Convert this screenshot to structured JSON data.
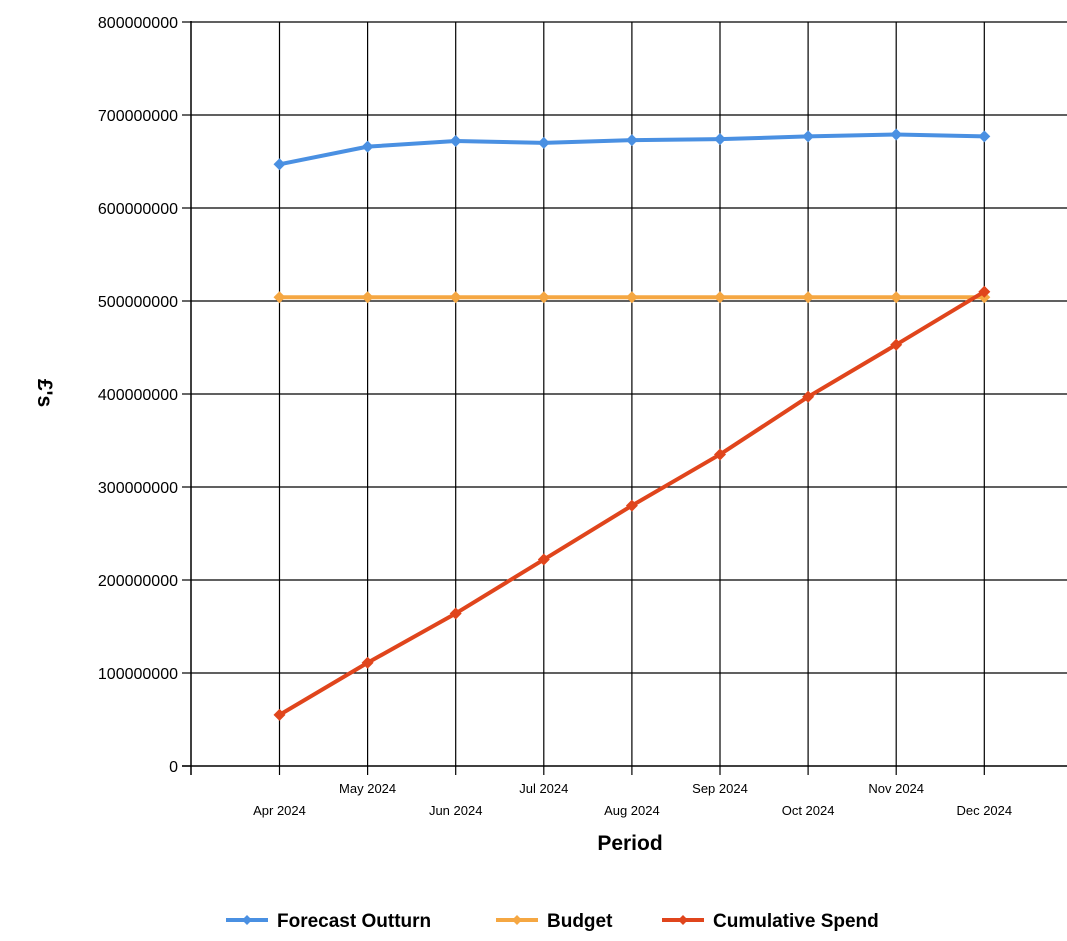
{
  "chart_data": {
    "type": "line",
    "title": "",
    "xlabel": "Period",
    "ylabel": "£'s",
    "ylim": [
      0,
      800000000
    ],
    "yticks": [
      0,
      100000000,
      200000000,
      300000000,
      400000000,
      500000000,
      600000000,
      700000000,
      800000000
    ],
    "ytick_labels": [
      "0",
      "100000000",
      "200000000",
      "300000000",
      "400000000",
      "500000000",
      "600000000",
      "700000000",
      "800000000"
    ],
    "categories": [
      "Apr 2024",
      "May 2024",
      "Jun 2024",
      "Jul 2024",
      "Aug 2024",
      "Sep 2024",
      "Oct 2024",
      "Nov 2024",
      "Dec 2024"
    ],
    "grid": true,
    "legend_position": "bottom",
    "series": [
      {
        "name": "Forecast Outturn",
        "color": "#4a90e2",
        "values": [
          647000000,
          666000000,
          672000000,
          670000000,
          673000000,
          674000000,
          677000000,
          679000000,
          677000000
        ]
      },
      {
        "name": "Budget",
        "color": "#f5a742",
        "values": [
          504000000,
          504000000,
          504000000,
          504000000,
          504000000,
          504000000,
          504000000,
          504000000,
          504000000
        ]
      },
      {
        "name": "Cumulative Spend",
        "color": "#e0451c",
        "values": [
          55000000,
          111000000,
          164000000,
          222000000,
          280000000,
          335000000,
          397000000,
          453000000,
          510000000
        ]
      }
    ]
  }
}
